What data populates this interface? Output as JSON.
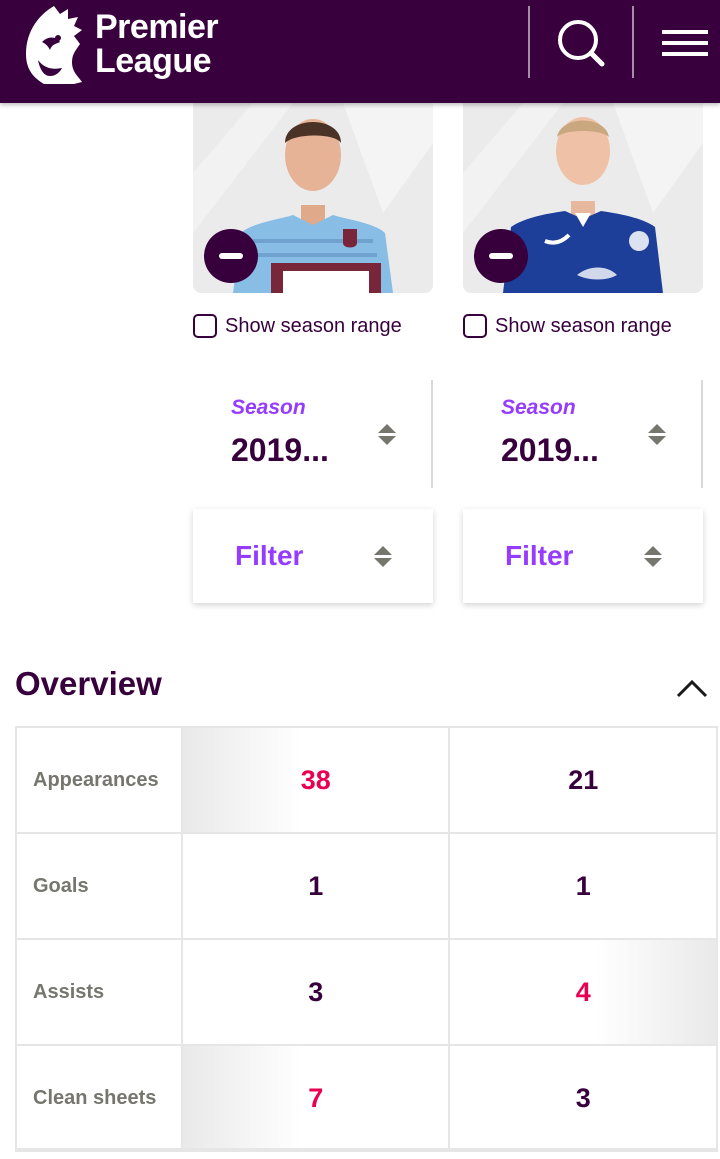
{
  "header": {
    "brand_line1": "Premier",
    "brand_line2": "League"
  },
  "players": [
    {
      "show_season_range": "Show season range",
      "season_label": "Season",
      "season_value": "2019...",
      "filter_label": "Filter"
    },
    {
      "show_season_range": "Show season range",
      "season_label": "Season",
      "season_value": "2019...",
      "filter_label": "Filter"
    }
  ],
  "overview": {
    "title": "Overview",
    "rows": [
      {
        "label": "Appearances",
        "p1": "38",
        "p2": "21",
        "leader": "p1"
      },
      {
        "label": "Goals",
        "p1": "1",
        "p2": "1",
        "leader": "none"
      },
      {
        "label": "Assists",
        "p1": "3",
        "p2": "4",
        "leader": "p2"
      },
      {
        "label": "Clean sheets",
        "p1": "7",
        "p2": "3",
        "leader": "p1"
      }
    ]
  },
  "colors": {
    "brand_purple": "#38003c",
    "accent_violet": "#963cff",
    "leader_pink": "#e90052"
  }
}
